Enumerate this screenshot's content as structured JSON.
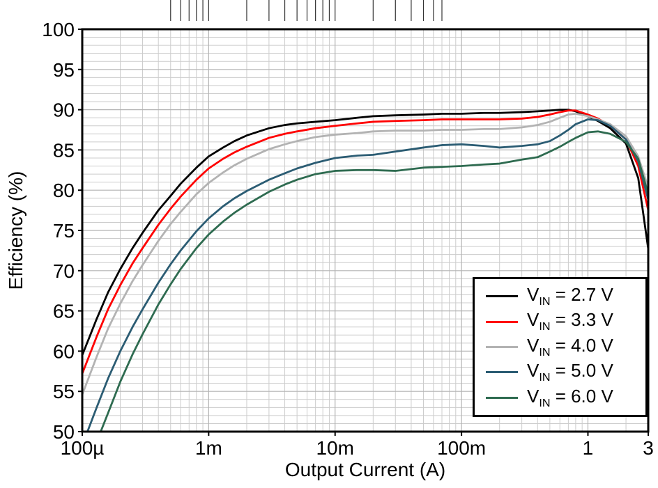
{
  "chart_data": {
    "type": "line",
    "title": "",
    "xlabel": "Output Current (A)",
    "ylabel": "Efficiency (%)",
    "x_scale": "log",
    "xlim": [
      0.0001,
      3
    ],
    "ylim": [
      50,
      100
    ],
    "y_major_step": 5,
    "y_minor_step": 1,
    "grid": true,
    "legend_position": "bottom-right",
    "x_ticks": [
      {
        "value": 0.0001,
        "label": "100µ"
      },
      {
        "value": 0.001,
        "label": "1m"
      },
      {
        "value": 0.01,
        "label": "10m"
      },
      {
        "value": 0.1,
        "label": "100m"
      },
      {
        "value": 1,
        "label": "1"
      },
      {
        "value": 3,
        "label": "3"
      }
    ],
    "y_ticks": [
      50,
      55,
      60,
      65,
      70,
      75,
      80,
      85,
      90,
      95,
      100
    ],
    "colors": {
      "grid_minor": "#cccccc",
      "grid_major": "#b3b3b3",
      "axis_border": "#000000"
    },
    "series": [
      {
        "name": "VIN = 2.7 V",
        "color": "#000000",
        "points": [
          [
            0.0001,
            59.5
          ],
          [
            0.00013,
            64
          ],
          [
            0.00016,
            67.3
          ],
          [
            0.0002,
            70.2
          ],
          [
            0.00025,
            72.8
          ],
          [
            0.0003,
            74.7
          ],
          [
            0.0004,
            77.5
          ],
          [
            0.0005,
            79.3
          ],
          [
            0.0006,
            80.8
          ],
          [
            0.0008,
            82.8
          ],
          [
            0.001,
            84.2
          ],
          [
            0.0013,
            85.3
          ],
          [
            0.0016,
            86.1
          ],
          [
            0.002,
            86.8
          ],
          [
            0.003,
            87.7
          ],
          [
            0.004,
            88.1
          ],
          [
            0.005,
            88.3
          ],
          [
            0.007,
            88.5
          ],
          [
            0.01,
            88.7
          ],
          [
            0.015,
            89.0
          ],
          [
            0.02,
            89.2
          ],
          [
            0.03,
            89.3
          ],
          [
            0.05,
            89.4
          ],
          [
            0.07,
            89.5
          ],
          [
            0.1,
            89.5
          ],
          [
            0.15,
            89.6
          ],
          [
            0.2,
            89.6
          ],
          [
            0.3,
            89.7
          ],
          [
            0.4,
            89.8
          ],
          [
            0.5,
            89.9
          ],
          [
            0.6,
            90.0
          ],
          [
            0.7,
            90.0
          ],
          [
            0.8,
            89.8
          ],
          [
            1,
            89.2
          ],
          [
            1.2,
            88.6
          ],
          [
            1.5,
            87.7
          ],
          [
            2,
            85.8
          ],
          [
            2.5,
            81.5
          ],
          [
            3,
            72.7
          ]
        ]
      },
      {
        "name": "VIN = 3.3 V",
        "color": "#ff0000",
        "points": [
          [
            0.0001,
            57.2
          ],
          [
            0.00013,
            61.8
          ],
          [
            0.00016,
            65.2
          ],
          [
            0.0002,
            68.2
          ],
          [
            0.00025,
            70.9
          ],
          [
            0.0003,
            72.8
          ],
          [
            0.0004,
            75.7
          ],
          [
            0.0005,
            77.7
          ],
          [
            0.0006,
            79.2
          ],
          [
            0.0008,
            81.3
          ],
          [
            0.001,
            82.7
          ],
          [
            0.0013,
            83.9
          ],
          [
            0.0016,
            84.7
          ],
          [
            0.002,
            85.4
          ],
          [
            0.003,
            86.5
          ],
          [
            0.004,
            87.0
          ],
          [
            0.005,
            87.3
          ],
          [
            0.007,
            87.7
          ],
          [
            0.01,
            88.0
          ],
          [
            0.015,
            88.3
          ],
          [
            0.02,
            88.5
          ],
          [
            0.03,
            88.6
          ],
          [
            0.05,
            88.7
          ],
          [
            0.07,
            88.8
          ],
          [
            0.1,
            88.8
          ],
          [
            0.15,
            88.8
          ],
          [
            0.2,
            88.8
          ],
          [
            0.3,
            88.9
          ],
          [
            0.4,
            89.1
          ],
          [
            0.5,
            89.4
          ],
          [
            0.6,
            89.7
          ],
          [
            0.7,
            89.9
          ],
          [
            0.8,
            89.9
          ],
          [
            1,
            89.4
          ],
          [
            1.2,
            88.9
          ],
          [
            1.5,
            88.0
          ],
          [
            2,
            86.3
          ],
          [
            2.5,
            83.0
          ],
          [
            3,
            77.5
          ]
        ]
      },
      {
        "name": "VIN = 4.0 V",
        "color": "#b3b3b3",
        "points": [
          [
            0.0001,
            54.6
          ],
          [
            0.00013,
            59.3
          ],
          [
            0.00016,
            62.8
          ],
          [
            0.0002,
            65.9
          ],
          [
            0.00025,
            68.7
          ],
          [
            0.0003,
            70.7
          ],
          [
            0.0004,
            73.7
          ],
          [
            0.0005,
            75.8
          ],
          [
            0.0006,
            77.3
          ],
          [
            0.0008,
            79.5
          ],
          [
            0.001,
            80.9
          ],
          [
            0.0013,
            82.2
          ],
          [
            0.0016,
            83.1
          ],
          [
            0.002,
            83.9
          ],
          [
            0.003,
            85.1
          ],
          [
            0.004,
            85.7
          ],
          [
            0.005,
            86.1
          ],
          [
            0.007,
            86.6
          ],
          [
            0.01,
            86.9
          ],
          [
            0.015,
            87.1
          ],
          [
            0.02,
            87.3
          ],
          [
            0.03,
            87.4
          ],
          [
            0.05,
            87.4
          ],
          [
            0.07,
            87.5
          ],
          [
            0.1,
            87.5
          ],
          [
            0.15,
            87.6
          ],
          [
            0.2,
            87.6
          ],
          [
            0.3,
            87.8
          ],
          [
            0.4,
            88.1
          ],
          [
            0.5,
            88.5
          ],
          [
            0.6,
            89.0
          ],
          [
            0.7,
            89.4
          ],
          [
            0.8,
            89.5
          ],
          [
            1,
            89.2
          ],
          [
            1.2,
            88.8
          ],
          [
            1.5,
            88.2
          ],
          [
            2,
            86.7
          ],
          [
            2.5,
            84.2
          ],
          [
            3,
            80.3
          ]
        ]
      },
      {
        "name": "VIN = 5.0 V",
        "color": "#2b5c73",
        "points": [
          [
            0.00011,
            50.0
          ],
          [
            0.00013,
            53.0
          ],
          [
            0.00016,
            56.6
          ],
          [
            0.0002,
            60.0
          ],
          [
            0.00025,
            63.0
          ],
          [
            0.0003,
            65.2
          ],
          [
            0.0004,
            68.5
          ],
          [
            0.0005,
            70.8
          ],
          [
            0.0006,
            72.5
          ],
          [
            0.0008,
            74.9
          ],
          [
            0.001,
            76.5
          ],
          [
            0.0013,
            78.0
          ],
          [
            0.0016,
            79.0
          ],
          [
            0.002,
            79.9
          ],
          [
            0.003,
            81.3
          ],
          [
            0.004,
            82.1
          ],
          [
            0.005,
            82.7
          ],
          [
            0.007,
            83.4
          ],
          [
            0.01,
            84.0
          ],
          [
            0.015,
            84.3
          ],
          [
            0.02,
            84.4
          ],
          [
            0.03,
            84.8
          ],
          [
            0.05,
            85.3
          ],
          [
            0.07,
            85.6
          ],
          [
            0.1,
            85.7
          ],
          [
            0.15,
            85.5
          ],
          [
            0.2,
            85.3
          ],
          [
            0.3,
            85.5
          ],
          [
            0.4,
            85.7
          ],
          [
            0.5,
            86.1
          ],
          [
            0.6,
            86.8
          ],
          [
            0.7,
            87.5
          ],
          [
            0.8,
            88.2
          ],
          [
            1,
            88.8
          ],
          [
            1.2,
            88.7
          ],
          [
            1.5,
            88.0
          ],
          [
            2,
            86.3
          ],
          [
            2.5,
            83.6
          ],
          [
            3,
            78.8
          ]
        ]
      },
      {
        "name": "VIN = 6.0 V",
        "color": "#2e6b50",
        "points": [
          [
            0.00014,
            50.0
          ],
          [
            0.00016,
            52.3
          ],
          [
            0.0002,
            56.2
          ],
          [
            0.00025,
            59.6
          ],
          [
            0.0003,
            62.1
          ],
          [
            0.0004,
            65.8
          ],
          [
            0.0005,
            68.3
          ],
          [
            0.0006,
            70.2
          ],
          [
            0.0008,
            72.8
          ],
          [
            0.001,
            74.5
          ],
          [
            0.0013,
            76.1
          ],
          [
            0.0016,
            77.2
          ],
          [
            0.002,
            78.2
          ],
          [
            0.003,
            79.8
          ],
          [
            0.004,
            80.7
          ],
          [
            0.005,
            81.3
          ],
          [
            0.007,
            82.0
          ],
          [
            0.01,
            82.4
          ],
          [
            0.015,
            82.5
          ],
          [
            0.02,
            82.5
          ],
          [
            0.03,
            82.4
          ],
          [
            0.05,
            82.8
          ],
          [
            0.07,
            82.9
          ],
          [
            0.1,
            83.0
          ],
          [
            0.15,
            83.2
          ],
          [
            0.2,
            83.3
          ],
          [
            0.3,
            83.8
          ],
          [
            0.4,
            84.1
          ],
          [
            0.5,
            84.8
          ],
          [
            0.6,
            85.4
          ],
          [
            0.7,
            86.0
          ],
          [
            0.8,
            86.5
          ],
          [
            1,
            87.2
          ],
          [
            1.2,
            87.3
          ],
          [
            1.5,
            87.0
          ],
          [
            2,
            86.0
          ],
          [
            2.5,
            83.9
          ],
          [
            3,
            79.5
          ]
        ]
      }
    ],
    "legend": {
      "items": [
        {
          "prefix": "V",
          "sub": "IN",
          "rest": " = 2.7 V",
          "color": "#000000"
        },
        {
          "prefix": "V",
          "sub": "IN",
          "rest": " = 3.3 V",
          "color": "#ff0000"
        },
        {
          "prefix": "V",
          "sub": "IN",
          "rest": " = 4.0 V",
          "color": "#b3b3b3"
        },
        {
          "prefix": "V",
          "sub": "IN",
          "rest": " = 5.0 V",
          "color": "#2b5c73"
        },
        {
          "prefix": "V",
          "sub": "IN",
          "rest": " = 6.0 V",
          "color": "#2e6b50"
        }
      ]
    }
  }
}
